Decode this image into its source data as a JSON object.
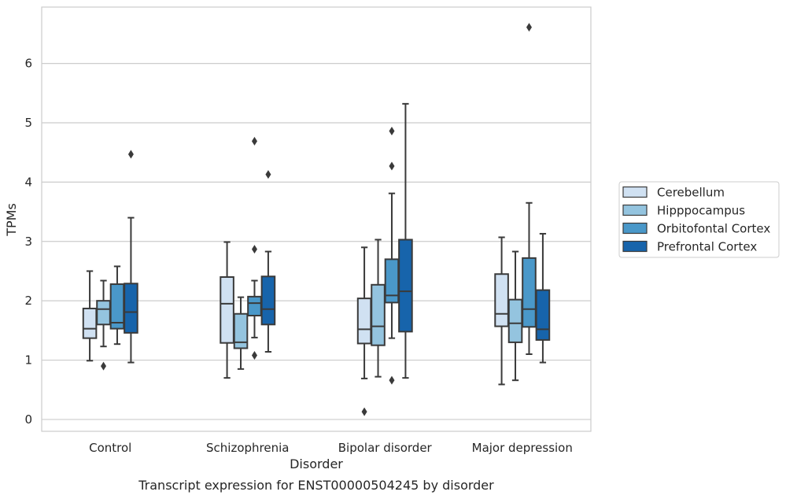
{
  "caption": "Transcript expression for ENST00000504245 by disorder",
  "chart_data": {
    "type": "box",
    "xlabel": "Disorder",
    "ylabel": "TPMs",
    "ylim": [
      -0.2,
      6.95
    ],
    "yticks": [
      0,
      1,
      2,
      3,
      4,
      5,
      6
    ],
    "grid": "horizontal",
    "legend_position": "right",
    "categories": [
      "Control",
      "Schizophrenia",
      "Bipolar disorder",
      "Major depression"
    ],
    "series": [
      {
        "name": "Cerebellum",
        "color": "#d0e1f2",
        "boxes": [
          {
            "whislo": 0.99,
            "q1": 1.37,
            "med": 1.53,
            "q3": 1.87,
            "whishi": 2.5,
            "fliers": []
          },
          {
            "whislo": 0.7,
            "q1": 1.29,
            "med": 1.95,
            "q3": 2.4,
            "whishi": 2.99,
            "fliers": []
          },
          {
            "whislo": 0.69,
            "q1": 1.28,
            "med": 1.52,
            "q3": 2.04,
            "whishi": 2.9,
            "fliers": [
              0.13
            ]
          },
          {
            "whislo": 0.59,
            "q1": 1.57,
            "med": 1.78,
            "q3": 2.45,
            "whishi": 3.07,
            "fliers": []
          }
        ]
      },
      {
        "name": "Hipppocampus",
        "color": "#94c4df",
        "boxes": [
          {
            "whislo": 1.23,
            "q1": 1.6,
            "med": 1.86,
            "q3": 2.0,
            "whishi": 2.34,
            "fliers": [
              0.9
            ]
          },
          {
            "whislo": 0.85,
            "q1": 1.2,
            "med": 1.3,
            "q3": 1.78,
            "whishi": 2.06,
            "fliers": []
          },
          {
            "whislo": 0.72,
            "q1": 1.25,
            "med": 1.57,
            "q3": 2.27,
            "whishi": 3.03,
            "fliers": []
          },
          {
            "whislo": 0.66,
            "q1": 1.3,
            "med": 1.62,
            "q3": 2.02,
            "whishi": 2.83,
            "fliers": []
          }
        ]
      },
      {
        "name": "Orbitofontal Cortex",
        "color": "#4a98c9",
        "boxes": [
          {
            "whislo": 1.27,
            "q1": 1.53,
            "med": 1.63,
            "q3": 2.28,
            "whishi": 2.58,
            "fliers": []
          },
          {
            "whislo": 1.38,
            "q1": 1.75,
            "med": 1.96,
            "q3": 2.07,
            "whishi": 2.34,
            "fliers": [
              2.87,
              4.69,
              1.08
            ]
          },
          {
            "whislo": 1.37,
            "q1": 1.97,
            "med": 2.09,
            "q3": 2.7,
            "whishi": 3.81,
            "fliers": [
              4.27,
              4.86,
              0.66
            ]
          },
          {
            "whislo": 1.1,
            "q1": 1.56,
            "med": 1.86,
            "q3": 2.72,
            "whishi": 3.65,
            "fliers": [
              6.61
            ]
          }
        ]
      },
      {
        "name": "Prefrontal Cortex",
        "color": "#1764ab",
        "boxes": [
          {
            "whislo": 0.96,
            "q1": 1.46,
            "med": 1.81,
            "q3": 2.29,
            "whishi": 3.4,
            "fliers": [
              4.47
            ]
          },
          {
            "whislo": 1.14,
            "q1": 1.6,
            "med": 1.86,
            "q3": 2.41,
            "whishi": 2.83,
            "fliers": [
              4.13
            ]
          },
          {
            "whislo": 0.7,
            "q1": 1.48,
            "med": 2.16,
            "q3": 3.03,
            "whishi": 5.32,
            "fliers": []
          },
          {
            "whislo": 0.96,
            "q1": 1.34,
            "med": 1.52,
            "q3": 2.18,
            "whishi": 3.13,
            "fliers": []
          }
        ]
      }
    ]
  }
}
